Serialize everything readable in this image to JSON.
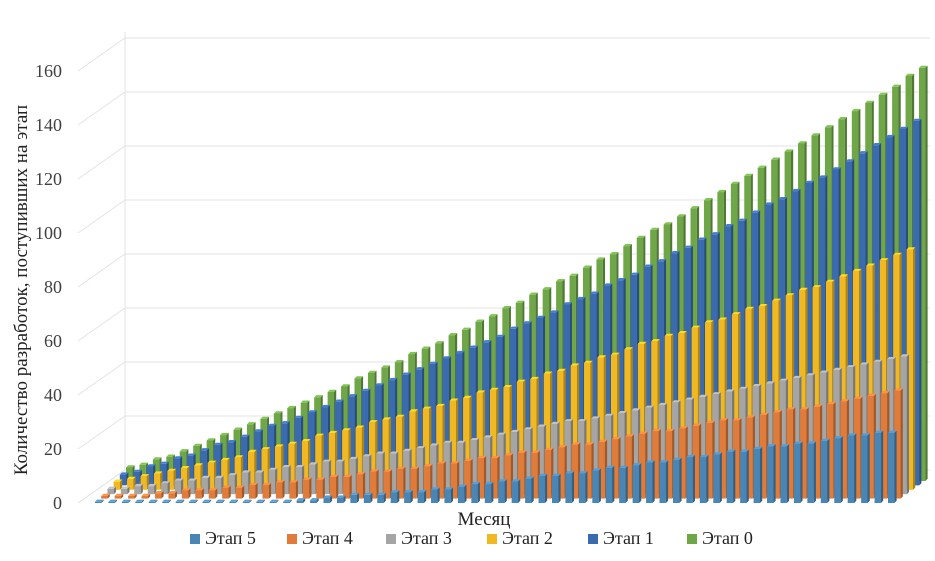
{
  "chart_data": {
    "type": "3d-bar",
    "title": "",
    "xlabel": "Месяц",
    "ylabel": "Количество разработок, поступивших на этап",
    "ylim": [
      0,
      160
    ],
    "yticks": [
      0,
      20,
      40,
      60,
      80,
      100,
      120,
      140,
      160
    ],
    "months_count": 60,
    "series_order_front_to_back": [
      "Этап 5",
      "Этап 4",
      "Этап 3",
      "Этап 2",
      "Этап 1",
      "Этап 0"
    ],
    "series": [
      {
        "name": "Этап 5",
        "color": "#4a86b5",
        "values": [
          0,
          0,
          0,
          0,
          0,
          0,
          0,
          0,
          0,
          0,
          0,
          0,
          0,
          0,
          0,
          1,
          1,
          2,
          2,
          3,
          3,
          3,
          4,
          4,
          4,
          5,
          5,
          6,
          7,
          7,
          8,
          8,
          9,
          10,
          10,
          11,
          11,
          12,
          13,
          13,
          14,
          15,
          15,
          16,
          17,
          17,
          18,
          19,
          19,
          20,
          21,
          21,
          22,
          22,
          23,
          24,
          25,
          25,
          26,
          26
        ]
      },
      {
        "name": "Этап 4",
        "color": "#e07b39",
        "values": [
          1,
          1,
          1,
          1,
          2,
          2,
          3,
          3,
          3,
          4,
          4,
          5,
          5,
          6,
          6,
          7,
          7,
          8,
          8,
          9,
          10,
          10,
          11,
          11,
          12,
          13,
          13,
          14,
          15,
          15,
          16,
          17,
          17,
          18,
          19,
          20,
          20,
          21,
          22,
          23,
          24,
          25,
          25,
          26,
          27,
          28,
          29,
          29,
          30,
          31,
          32,
          33,
          33,
          34,
          35,
          36,
          37,
          38,
          39,
          40
        ]
      },
      {
        "name": "Этап 3",
        "color": "#a5a5a5",
        "values": [
          2,
          2,
          3,
          3,
          4,
          5,
          5,
          6,
          6,
          7,
          8,
          8,
          9,
          10,
          10,
          11,
          12,
          12,
          13,
          14,
          15,
          15,
          16,
          17,
          18,
          19,
          19,
          20,
          21,
          22,
          23,
          24,
          25,
          26,
          27,
          27,
          28,
          29,
          30,
          31,
          32,
          33,
          34,
          35,
          36,
          37,
          38,
          39,
          40,
          41,
          42,
          43,
          44,
          45,
          46,
          47,
          48,
          49,
          50,
          51
        ]
      },
      {
        "name": "Этап 2",
        "color": "#f0b822",
        "values": [
          3,
          4,
          5,
          6,
          7,
          8,
          9,
          10,
          11,
          12,
          14,
          15,
          16,
          17,
          18,
          20,
          21,
          22,
          23,
          25,
          26,
          27,
          29,
          30,
          31,
          33,
          34,
          36,
          37,
          38,
          40,
          41,
          43,
          44,
          46,
          47,
          49,
          50,
          52,
          54,
          55,
          57,
          58,
          60,
          62,
          63,
          65,
          67,
          68,
          70,
          72,
          74,
          75,
          77,
          79,
          81,
          83,
          85,
          87,
          89
        ]
      },
      {
        "name": "Этап 1",
        "color": "#3a6baf",
        "values": [
          4,
          5,
          7,
          8,
          10,
          11,
          13,
          15,
          16,
          18,
          20,
          22,
          23,
          25,
          27,
          29,
          31,
          33,
          35,
          37,
          39,
          41,
          43,
          45,
          47,
          49,
          51,
          53,
          55,
          58,
          60,
          62,
          64,
          67,
          69,
          71,
          74,
          76,
          78,
          81,
          83,
          86,
          88,
          91,
          93,
          96,
          98,
          101,
          104,
          106,
          109,
          112,
          114,
          117,
          120,
          123,
          126,
          129,
          132,
          135
        ]
      },
      {
        "name": "Этап 0",
        "color": "#6ea648",
        "values": [
          5,
          6,
          8,
          9,
          11,
          13,
          15,
          17,
          19,
          21,
          23,
          25,
          27,
          29,
          31,
          33,
          35,
          38,
          40,
          42,
          44,
          47,
          49,
          51,
          54,
          56,
          59,
          61,
          64,
          66,
          69,
          71,
          74,
          76,
          79,
          82,
          84,
          87,
          90,
          93,
          95,
          98,
          101,
          104,
          107,
          110,
          113,
          116,
          119,
          122,
          125,
          128,
          131,
          134,
          137,
          140,
          143,
          146,
          150,
          153
        ]
      }
    ],
    "legend": [
      "Этап 5",
      "Этап 4",
      "Этап 3",
      "Этап 2",
      "Этап 1",
      "Этап 0"
    ],
    "legend_position": "bottom"
  }
}
